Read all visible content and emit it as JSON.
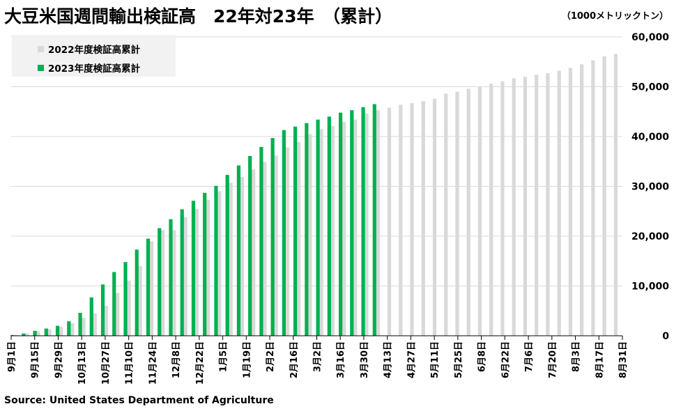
{
  "chart_title": "大豆米国週間輸出検証高　22年対23年　（累計）",
  "unit_label": "（1000メトリックトン）",
  "source": "Source: United States Department of Agriculture",
  "colors": {
    "series_2022": "#d9d9d9",
    "series_2023": "#00b050",
    "gridline": "#d9d9d9",
    "axis": "#000000",
    "legend_bg": "#f2f2f2"
  },
  "chart_data": {
    "type": "bar",
    "title": "大豆米国週間輸出検証高　22年対23年　（累計）",
    "ylabel": "（1000メトリックトン）",
    "ylim": [
      0,
      60000
    ],
    "yticks": [
      "0",
      "10,000",
      "20,000",
      "30,000",
      "40,000",
      "50,000",
      "60,000"
    ],
    "grid": true,
    "legend_position": "top-left",
    "y_axis_side": "right",
    "x_tick_labels": [
      "9月1日",
      "9月15日",
      "9月29日",
      "10月13日",
      "10月27日",
      "11月10日",
      "11月24日",
      "12月8日",
      "12月22日",
      "1月5日",
      "1月19日",
      "2月2日",
      "2月16日",
      "3月2日",
      "3月16日",
      "3月30日",
      "4月13日",
      "4月27日",
      "5月11日",
      "5月25日",
      "6月8日",
      "6月22日",
      "7月6日",
      "7月20日",
      "8月3日",
      "8月17日",
      "8月31日"
    ],
    "series": [
      {
        "name": "2022年度検証高累計",
        "color": "#d9d9d9",
        "values": [
          200,
          500,
          900,
          1300,
          1800,
          2500,
          3600,
          4500,
          6000,
          8600,
          11100,
          14000,
          19000,
          21200,
          21200,
          23800,
          25500,
          27300,
          29000,
          30700,
          31900,
          33400,
          34900,
          36200,
          37800,
          38900,
          40500,
          41500,
          42100,
          42900,
          43400,
          44600,
          45300,
          45800,
          46400,
          46700,
          47100,
          47600,
          48600,
          49000,
          49600,
          50000,
          50600,
          51100,
          51700,
          52000,
          52400,
          52700,
          53200,
          53800,
          54500,
          55300,
          56100,
          56600
        ]
      },
      {
        "name": "2023年度検証高累計",
        "color": "#00b050",
        "values": [
          150,
          450,
          1000,
          1450,
          2000,
          2900,
          4600,
          7700,
          10300,
          12800,
          14800,
          17300,
          19500,
          21600,
          23400,
          25400,
          27100,
          28700,
          30100,
          32300,
          34200,
          36100,
          37900,
          39700,
          41300,
          42000,
          42700,
          43400,
          44000,
          44800,
          45300,
          45900,
          46500
        ]
      }
    ]
  }
}
